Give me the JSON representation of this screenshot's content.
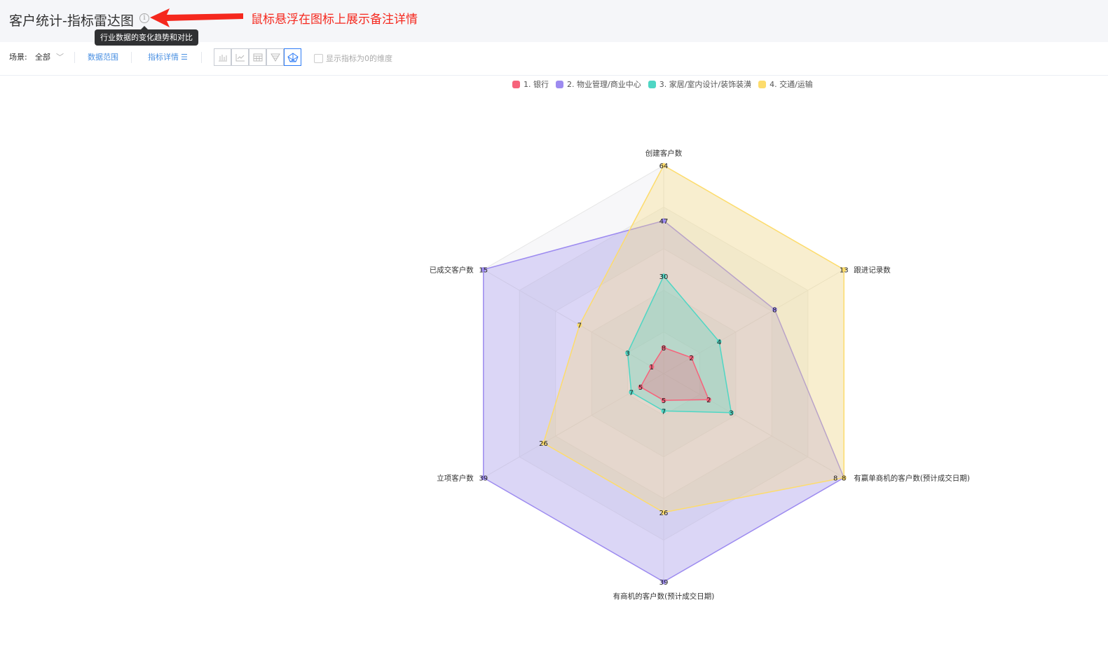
{
  "header": {
    "title": "客户统计-指标雷达图",
    "info_icon": "info-circle-icon",
    "tooltip": "行业数据的变化趋势和对比",
    "annotation": "鼠标悬浮在图标上展示备注详情"
  },
  "toolbar": {
    "scene_label": "场景:",
    "scene_value": "全部",
    "data_range": "数据范围",
    "metric_detail": "指标详情",
    "chart_types": [
      "bar-chart-icon",
      "line-chart-icon",
      "table-icon",
      "funnel-icon",
      "radar-chart-icon"
    ],
    "active_chart_type": "radar-chart-icon",
    "show_zero_label": "显示指标为0的维度",
    "show_zero_checked": false
  },
  "chart_data": {
    "type": "radar",
    "indicators": [
      {
        "name": "创建客户数",
        "max": 64
      },
      {
        "name": "跟进记录数",
        "max": 13
      },
      {
        "name": "有赢单商机的客户数(预计成交日期)",
        "max": 8
      },
      {
        "name": "有商机的客户数(预计成交日期)",
        "max": 39
      },
      {
        "name": "立项客户数",
        "max": 39
      },
      {
        "name": "已成交客户数",
        "max": 15
      }
    ],
    "legend_position": "top",
    "series": [
      {
        "name": "1. 银行",
        "color": "#f6637b",
        "values": [
          8,
          2,
          2,
          5,
          5,
          1
        ]
      },
      {
        "name": "2. 物业管理/商业中心",
        "color": "#9d8bf0",
        "values": [
          47,
          8,
          8,
          39,
          39,
          15
        ]
      },
      {
        "name": "3. 家居/室内设计/装饰装潢",
        "color": "#4fd6c4",
        "values": [
          30,
          4,
          3,
          7,
          7,
          3
        ]
      },
      {
        "name": "4. 交通/运输",
        "color": "#fddc6c",
        "values": [
          64,
          13,
          8,
          26,
          26,
          7
        ]
      }
    ]
  }
}
